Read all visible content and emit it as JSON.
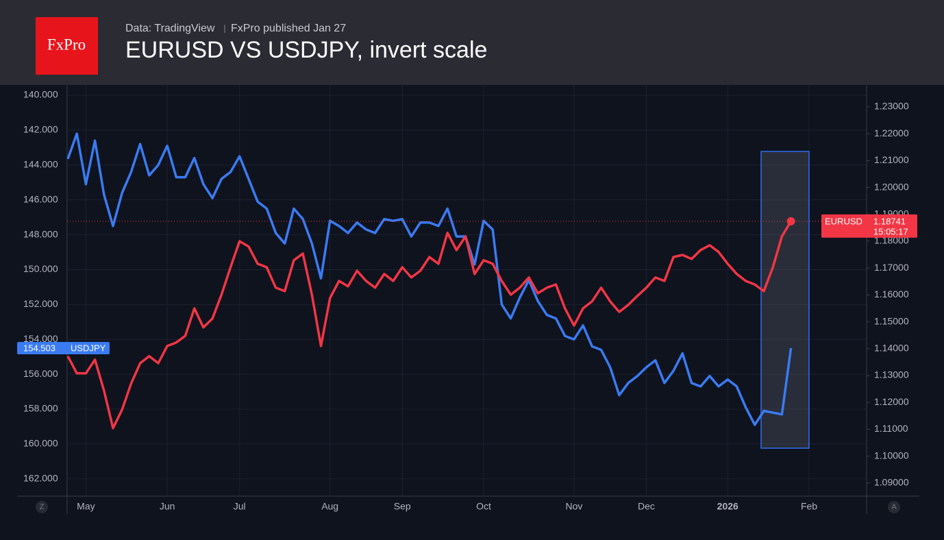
{
  "header": {
    "logo": "FxPro",
    "source": "Data: TradingView",
    "publisher": "FxPro published Jan 27"
  },
  "chart_data": {
    "type": "line",
    "title": "EURUSD VS USDJPY, invert scale",
    "categories": [
      null,
      null,
      "May",
      null,
      null,
      null,
      null,
      null,
      null,
      null,
      null,
      "Jun",
      null,
      null,
      null,
      null,
      null,
      null,
      null,
      "Jul",
      null,
      null,
      null,
      null,
      null,
      null,
      null,
      null,
      null,
      "Aug",
      null,
      null,
      null,
      null,
      null,
      null,
      null,
      "Sep",
      null,
      null,
      null,
      null,
      null,
      null,
      null,
      null,
      "Oct",
      null,
      null,
      null,
      null,
      null,
      null,
      null,
      null,
      null,
      "Nov",
      null,
      null,
      null,
      null,
      null,
      null,
      null,
      "Dec",
      null,
      null,
      null,
      null,
      null,
      null,
      null,
      null,
      "2026",
      null,
      null,
      null,
      null,
      null,
      null,
      null,
      null,
      "Feb"
    ],
    "series": [
      {
        "name": "USDJPY",
        "color": "#3a7bf2",
        "axis": "y",
        "values": [
          143.65,
          142.2,
          145.1,
          142.6,
          145.7,
          147.5,
          145.6,
          144.4,
          142.8,
          144.6,
          144.0,
          142.9,
          144.7,
          144.7,
          143.6,
          145.1,
          145.9,
          144.8,
          144.4,
          143.5,
          144.8,
          146.1,
          146.5,
          147.9,
          148.5,
          146.5,
          147.1,
          148.5,
          150.5,
          147.2,
          147.5,
          147.9,
          147.3,
          147.7,
          147.9,
          147.1,
          147.2,
          147.1,
          148.1,
          147.3,
          147.3,
          147.5,
          146.5,
          148.1,
          148.1,
          149.7,
          147.2,
          147.7,
          152.0,
          152.8,
          151.6,
          150.6,
          151.8,
          152.6,
          152.8,
          153.8,
          154.0,
          153.2,
          154.4,
          154.6,
          155.6,
          157.2,
          156.5,
          156.1,
          155.6,
          155.2,
          156.5,
          155.8,
          154.8,
          156.5,
          156.7,
          156.1,
          156.7,
          156.3,
          156.7,
          157.9,
          158.9,
          158.1,
          158.2,
          158.3,
          154.503,
          null,
          null
        ]
      },
      {
        "name": "EURUSD",
        "color": "#f23645",
        "axis": "y2",
        "values": [
          1.1372,
          1.1308,
          1.1308,
          1.1359,
          1.1244,
          1.1104,
          1.1173,
          1.127,
          1.1346,
          1.1372,
          1.1346,
          1.141,
          1.1423,
          1.1448,
          1.155,
          1.1479,
          1.1512,
          1.1601,
          1.1703,
          1.18,
          1.178,
          1.1716,
          1.1703,
          1.1627,
          1.1614,
          1.1729,
          1.1754,
          1.1601,
          1.141,
          1.1588,
          1.1652,
          1.1632,
          1.169,
          1.1652,
          1.1627,
          1.1678,
          1.1652,
          1.1703,
          1.1665,
          1.169,
          1.1741,
          1.1716,
          1.1831,
          1.1767,
          1.1818,
          1.1678,
          1.1729,
          1.1716,
          1.1652,
          1.1601,
          1.1627,
          1.1665,
          1.1606,
          1.1627,
          1.1639,
          1.155,
          1.1486,
          1.155,
          1.1576,
          1.1627,
          1.1576,
          1.1537,
          1.1563,
          1.1596,
          1.1627,
          1.1665,
          1.1652,
          1.1741,
          1.1749,
          1.1734,
          1.1767,
          1.1785,
          1.176,
          1.1716,
          1.1678,
          1.1652,
          1.1639,
          1.1614,
          1.1703,
          1.1818,
          1.18741,
          null,
          null
        ]
      }
    ],
    "ylim": [
      139.45,
      162.99
    ],
    "y_inverted": true,
    "yticks": [
      {
        "value": 140,
        "label": "140.000"
      },
      {
        "value": 142,
        "label": "142.000"
      },
      {
        "value": 144,
        "label": "144.000"
      },
      {
        "value": 146,
        "label": "146.000"
      },
      {
        "value": 148,
        "label": "148.000"
      },
      {
        "value": 150,
        "label": "150.000"
      },
      {
        "value": 152,
        "label": "152.000"
      },
      {
        "value": 154,
        "label": "154.000"
      },
      {
        "value": 156,
        "label": "156.000"
      },
      {
        "value": 158,
        "label": "158.000"
      },
      {
        "value": 160,
        "label": "160.000"
      },
      {
        "value": 162,
        "label": "162.000"
      }
    ],
    "y2lim": [
      1.0851,
      1.2379
    ],
    "y2ticks": [
      {
        "value": 1.09,
        "label": "1.09000"
      },
      {
        "value": 1.1,
        "label": "1.10000"
      },
      {
        "value": 1.11,
        "label": "1.11000"
      },
      {
        "value": 1.12,
        "label": "1.12000"
      },
      {
        "value": 1.13,
        "label": "1.13000"
      },
      {
        "value": 1.14,
        "label": "1.14000"
      },
      {
        "value": 1.15,
        "label": "1.15000"
      },
      {
        "value": 1.16,
        "label": "1.16000"
      },
      {
        "value": 1.17,
        "label": "1.17000"
      },
      {
        "value": 1.18,
        "label": "1.18000"
      },
      {
        "value": 1.19,
        "label": "1.19000"
      },
      {
        "value": 1.2,
        "label": "1.20000"
      },
      {
        "value": 1.21,
        "label": "1.21000"
      },
      {
        "value": 1.22,
        "label": "1.22000"
      },
      {
        "value": 1.23,
        "label": "1.23000"
      }
    ],
    "grid": true,
    "countdown": "15:05:17",
    "bold_category": "2026",
    "corner_labels": [
      "Z",
      "A"
    ]
  }
}
